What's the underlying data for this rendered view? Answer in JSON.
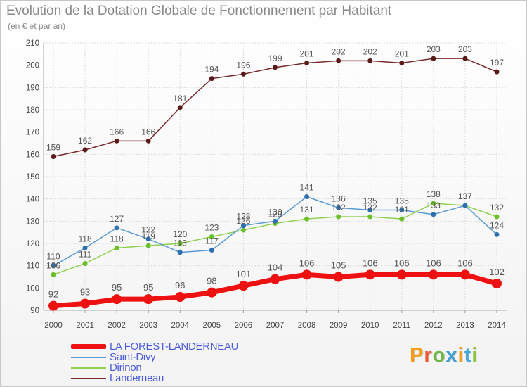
{
  "header": {
    "title": "Evolution de la Dotation Globale de Fonctionnement par Habitant",
    "subtitle": "(en € et par an)"
  },
  "logo": {
    "letters": [
      "P",
      "r",
      "o",
      "x",
      "i",
      "t",
      "i"
    ],
    "colors": [
      "#f59d1c",
      "#f0562f",
      "#6cb842",
      "#3d9fd3",
      "#f59d1c",
      "#4aa8d8",
      "#8fc43d"
    ]
  },
  "chart_data": {
    "type": "line",
    "title": "Evolution de la Dotation Globale de Fonctionnement par Habitant",
    "subtitle": "(en € et par an)",
    "xlabel": "",
    "ylabel": "",
    "x": [
      2000,
      2001,
      2002,
      2003,
      2004,
      2005,
      2006,
      2007,
      2008,
      2009,
      2010,
      2011,
      2012,
      2013,
      2014
    ],
    "ylim": [
      90,
      210
    ],
    "yticks": [
      90,
      100,
      110,
      120,
      130,
      140,
      150,
      160,
      170,
      180,
      190,
      200,
      210
    ],
    "grid": true,
    "legend": "bottom-left",
    "series": [
      {
        "name": "LA FOREST-LANDERNEAU",
        "color": "#ee1111",
        "values": [
          92,
          93,
          95,
          95,
          96,
          98,
          101,
          104,
          106,
          105,
          106,
          106,
          106,
          106,
          102
        ]
      },
      {
        "name": "Saint-Divy",
        "color": "#5b9bd5",
        "values": [
          110,
          118,
          127,
          122,
          116,
          117,
          128,
          130,
          141,
          136,
          135,
          135,
          133,
          137,
          124
        ]
      },
      {
        "name": "Dirinon",
        "color": "#92d050",
        "values": [
          106,
          111,
          118,
          119,
          120,
          123,
          126,
          129,
          131,
          132,
          132,
          131,
          138,
          137,
          132
        ]
      },
      {
        "name": "Landerneau",
        "color": "#7a2a2a",
        "values": [
          159,
          162,
          166,
          166,
          181,
          194,
          196,
          199,
          201,
          202,
          202,
          201,
          203,
          203,
          197
        ]
      }
    ]
  }
}
